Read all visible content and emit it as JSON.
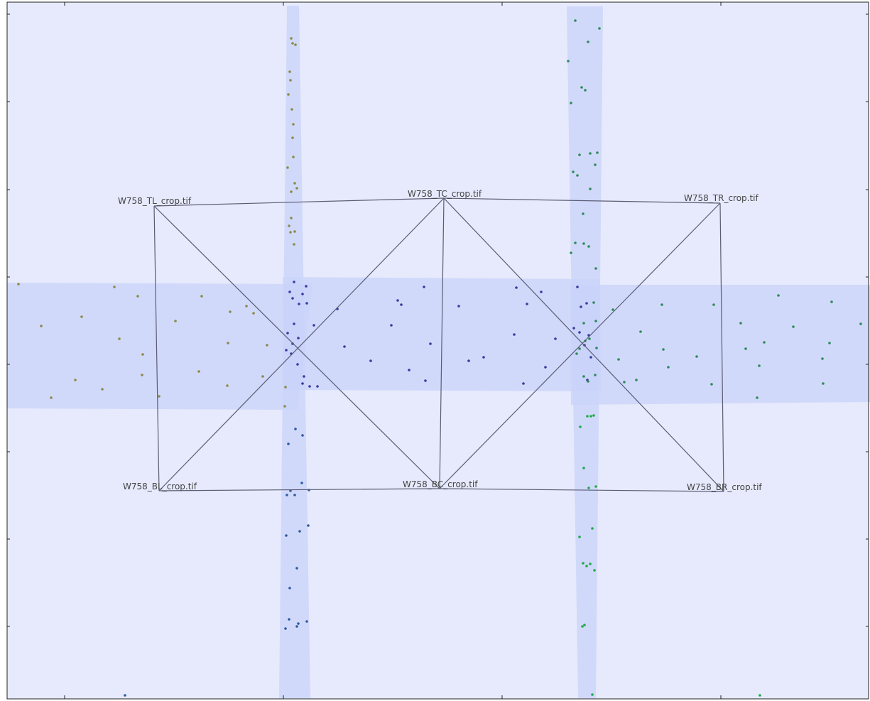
{
  "colors": {
    "background": "#e6eafc",
    "overlap": "#c9d3fa",
    "edge": "#5a5c74",
    "points_tl": "#8a8a4a",
    "points_tc": "#3a3aa0",
    "points_tr": "#2e8a5a",
    "points_bl": "#2f5aa0",
    "points_br": "#1faa4a",
    "axis": "#222222"
  },
  "tiles": [
    {
      "id": "TL",
      "label": "W758_TL_crop.tif"
    },
    {
      "id": "TC",
      "label": "W758_TC_crop.tif"
    },
    {
      "id": "TR",
      "label": "W758_TR_crop.tif"
    },
    {
      "id": "BL",
      "label": "W758_BL_crop.tif"
    },
    {
      "id": "BC",
      "label": "W758_BC_crop.tif"
    },
    {
      "id": "BR",
      "label": "W758_BR_crop.tif"
    }
  ],
  "edges": [
    [
      "TL",
      "TC"
    ],
    [
      "TC",
      "TR"
    ],
    [
      "BL",
      "BC"
    ],
    [
      "BC",
      "BR"
    ],
    [
      "TL",
      "BL"
    ],
    [
      "TR",
      "BR"
    ],
    [
      "TC",
      "BC"
    ],
    [
      "TL",
      "BC"
    ],
    [
      "TC",
      "BL"
    ],
    [
      "TC",
      "BR"
    ],
    [
      "TR",
      "BC"
    ]
  ]
}
